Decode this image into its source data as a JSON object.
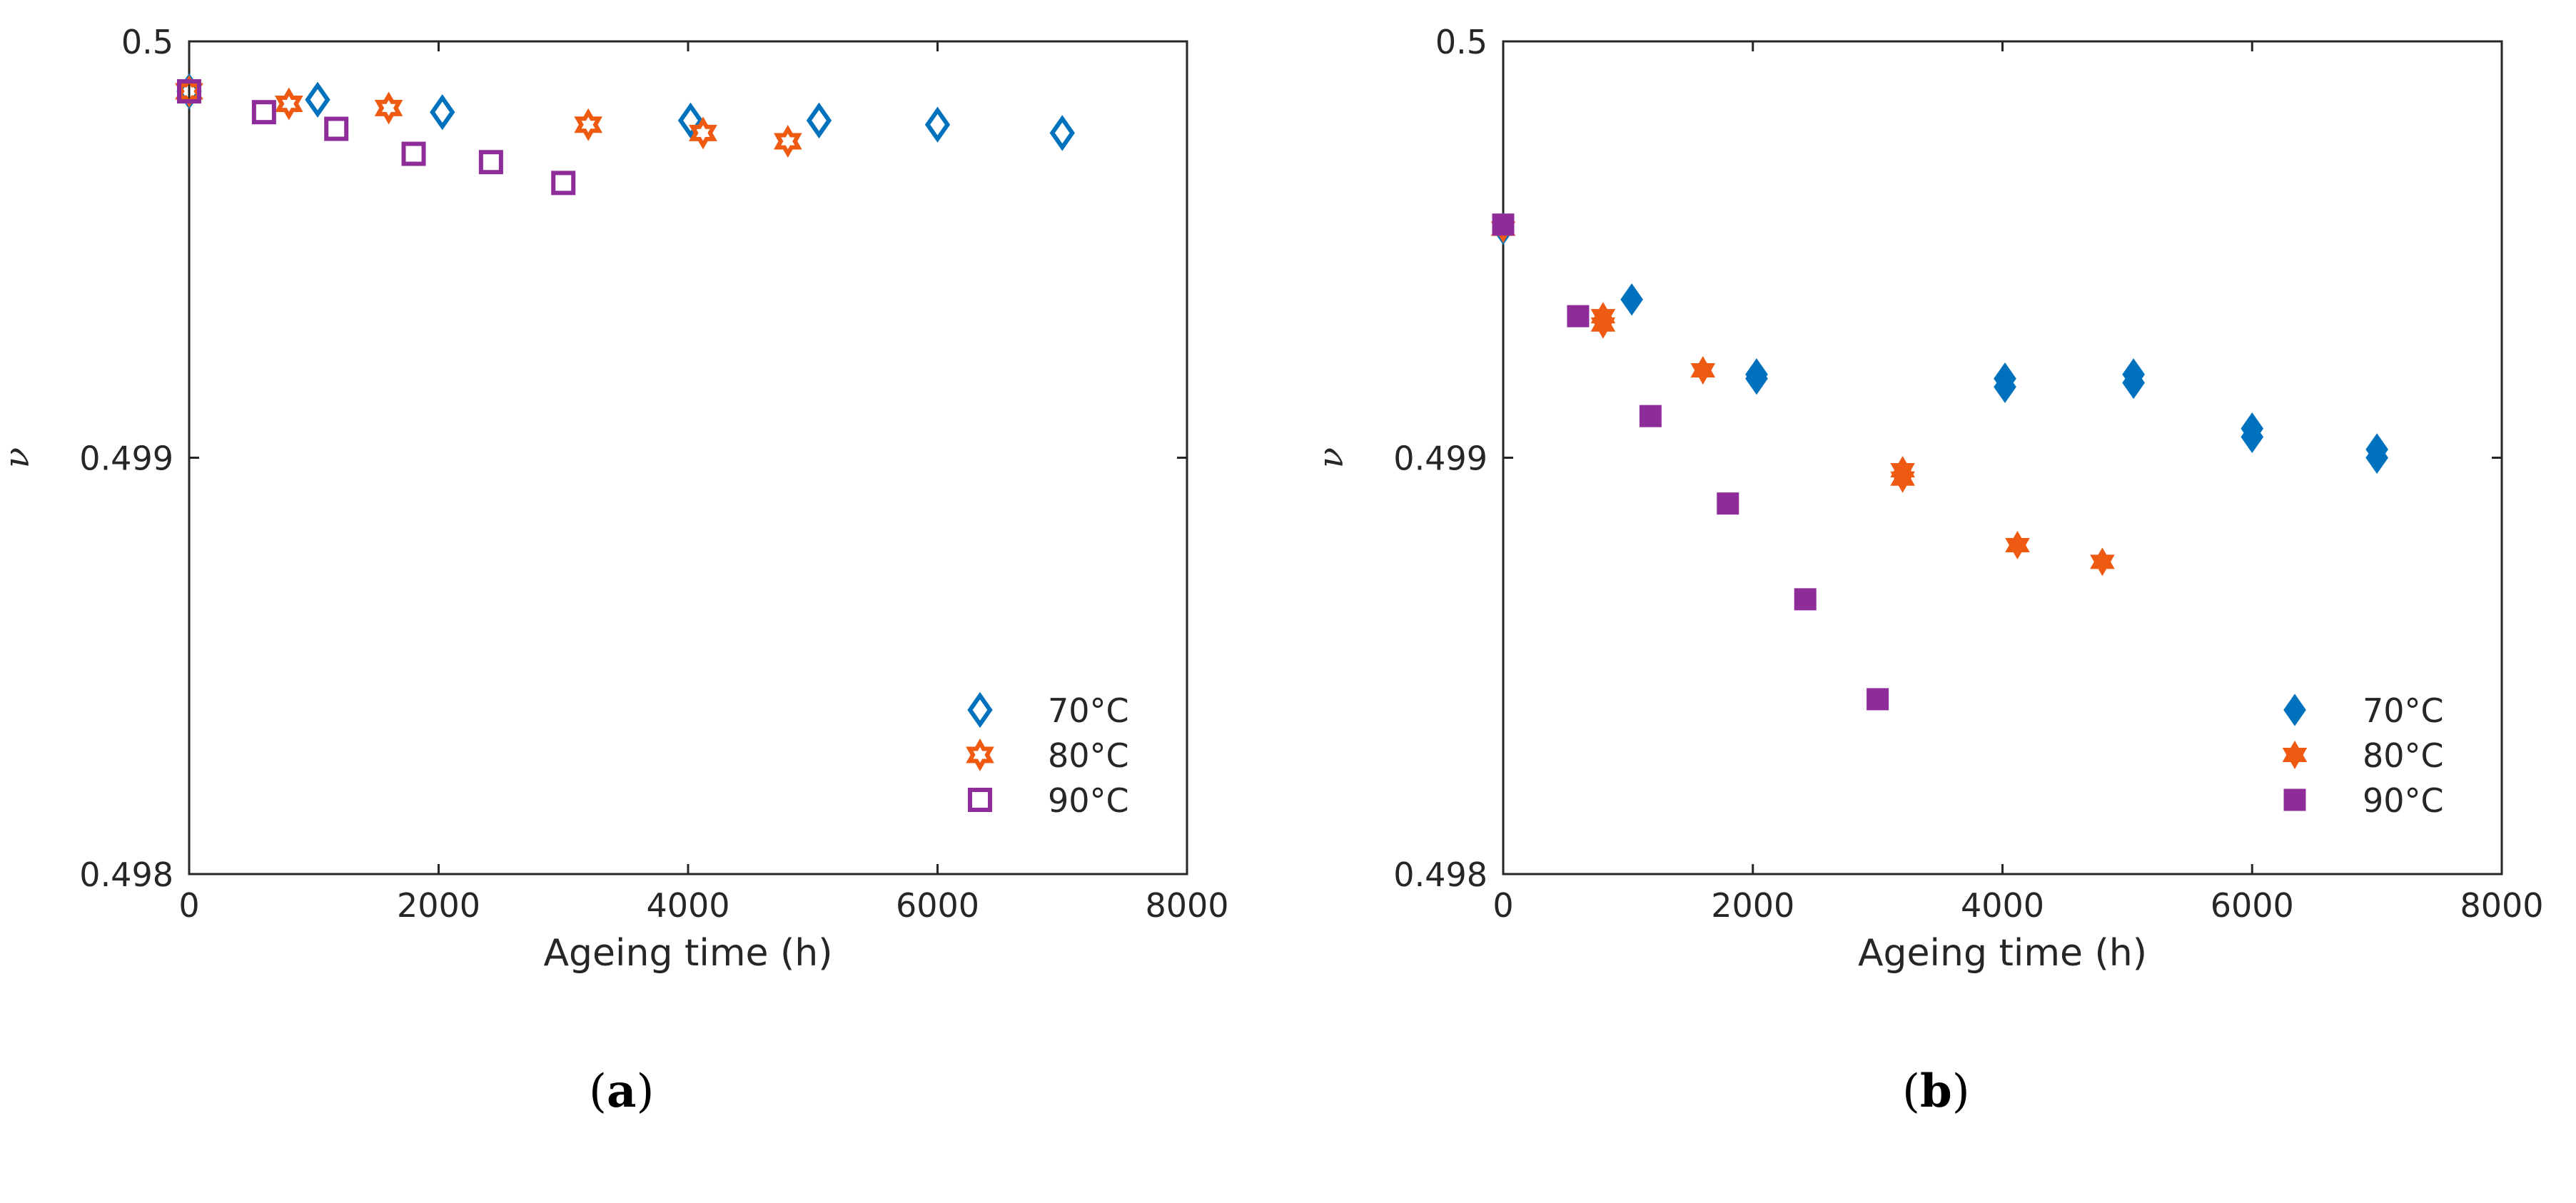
{
  "chart_data": [
    {
      "type": "scatter",
      "panel_label": "a",
      "xlabel": "Ageing time (h)",
      "ylabel": "ν",
      "xlim": [
        0,
        8000
      ],
      "ylim": [
        0.498,
        0.5
      ],
      "xticks": [
        0,
        2000,
        4000,
        6000,
        8000
      ],
      "xtick_labels": [
        "0",
        "2000",
        "4000",
        "6000",
        "8000"
      ],
      "yticks": [
        0.498,
        0.499,
        0.5
      ],
      "ytick_labels": [
        "0.498",
        "0.499",
        "0.5"
      ],
      "legend_position": "bottom-right",
      "grid": false,
      "series": [
        {
          "name": "70°C",
          "marker": "diamond",
          "filled": false,
          "color": "#0072BD",
          "x": [
            0,
            1030,
            2030,
            4020,
            5050,
            6000,
            7000
          ],
          "y": [
            0.49988,
            0.49986,
            0.49983,
            0.49981,
            0.49981,
            0.4998,
            0.49978
          ]
        },
        {
          "name": "80°C",
          "marker": "hexagram",
          "filled": false,
          "color": "#EE5A12",
          "x": [
            0,
            800,
            1600,
            3200,
            4120,
            4800
          ],
          "y": [
            0.49988,
            0.49985,
            0.49984,
            0.4998,
            0.49978,
            0.49976
          ]
        },
        {
          "name": "90°C",
          "marker": "square",
          "filled": false,
          "color": "#8E2C9A",
          "x": [
            0,
            600,
            1180,
            1800,
            2420,
            3000
          ],
          "y": [
            0.49988,
            0.49983,
            0.49979,
            0.49973,
            0.49971,
            0.49966
          ]
        }
      ]
    },
    {
      "type": "scatter",
      "panel_label": "b",
      "xlabel": "Ageing time (h)",
      "ylabel": "ν",
      "xlim": [
        0,
        8000
      ],
      "ylim": [
        0.498,
        0.5
      ],
      "xticks": [
        0,
        2000,
        4000,
        6000,
        8000
      ],
      "xtick_labels": [
        "0",
        "2000",
        "4000",
        "6000",
        "8000"
      ],
      "yticks": [
        0.498,
        0.499,
        0.5
      ],
      "ytick_labels": [
        "0.498",
        "0.499",
        "0.5"
      ],
      "legend_position": "bottom-right",
      "grid": false,
      "series": [
        {
          "name": "70°C",
          "marker": "diamond",
          "filled": true,
          "color": "#0072BD",
          "x": [
            0,
            1030,
            2030,
            2030,
            4020,
            4020,
            5050,
            5050,
            6000,
            6000,
            7000,
            7000
          ],
          "y": [
            0.49955,
            0.49938,
            0.4992,
            0.49919,
            0.49919,
            0.49917,
            0.4992,
            0.49918,
            0.49907,
            0.49905,
            0.49902,
            0.499
          ]
        },
        {
          "name": "80°C",
          "marker": "hexagram",
          "filled": true,
          "color": "#EE5A12",
          "x": [
            0,
            800,
            800,
            1600,
            3200,
            3200,
            4120,
            4800
          ],
          "y": [
            0.49955,
            0.49934,
            0.49932,
            0.49921,
            0.49897,
            0.49895,
            0.49879,
            0.49875
          ]
        },
        {
          "name": "90°C",
          "marker": "square",
          "filled": true,
          "color": "#8E2C9A",
          "x": [
            0,
            600,
            1180,
            1800,
            2420,
            3000
          ],
          "y": [
            0.49956,
            0.49934,
            0.4991,
            0.49889,
            0.49866,
            0.49842
          ]
        }
      ]
    }
  ]
}
